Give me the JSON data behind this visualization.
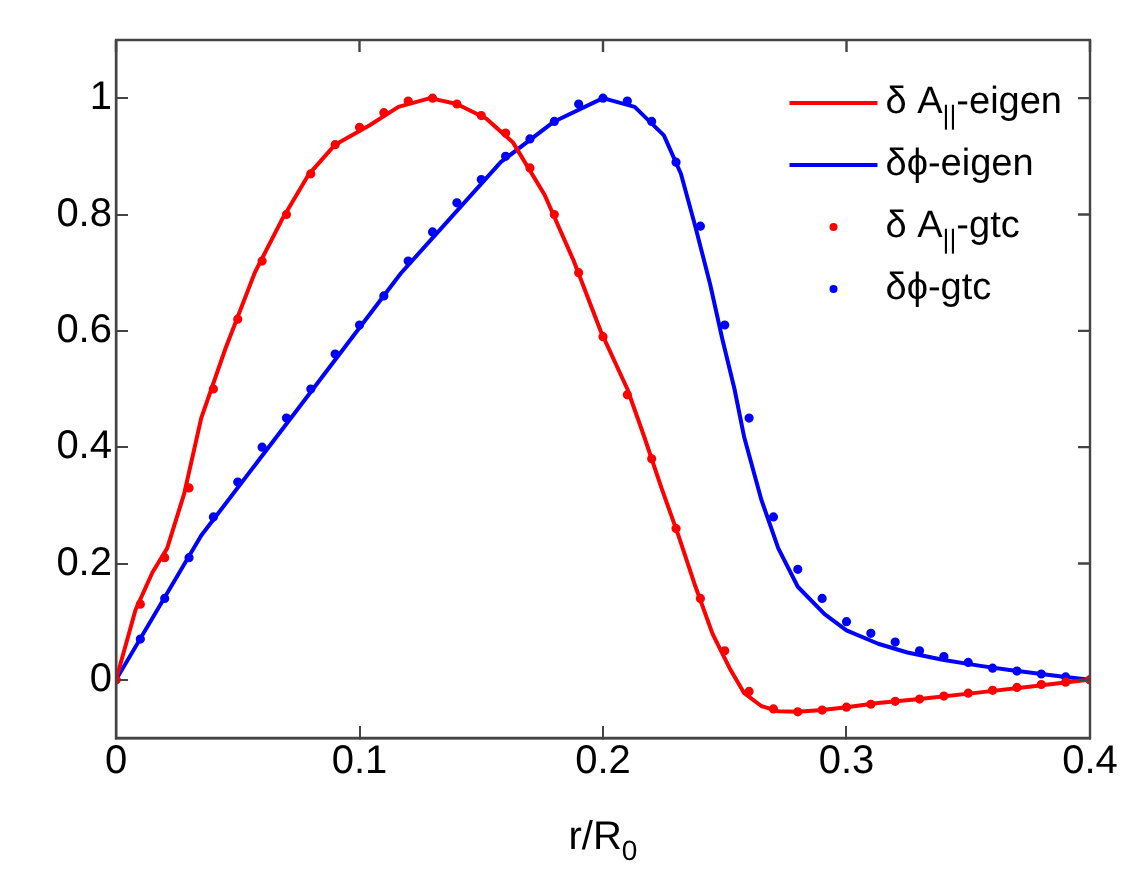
{
  "chart_data": {
    "type": "line",
    "xlabel": "r/R$_{0}$",
    "xlim": [
      0,
      0.4
    ],
    "xticks": [
      0,
      0.1,
      0.2,
      0.3,
      0.4
    ],
    "ylim": [
      -0.1,
      1.1
    ],
    "yticks": [
      0,
      0.2,
      0.4,
      0.6,
      0.8,
      1
    ],
    "grid": false,
    "legend": "top right",
    "line_style": "solid",
    "series": [
      {
        "name": "δ A$_{||}$-eigen",
        "marker": "none",
        "color": "#ff0000",
        "x": [
          0,
          0.004,
          0.008,
          0.015,
          0.021,
          0.028,
          0.035,
          0.045,
          0.057,
          0.068,
          0.079,
          0.09,
          0.104,
          0.116,
          0.129,
          0.14,
          0.152,
          0.163,
          0.176,
          0.188,
          0.199,
          0.21,
          0.217,
          0.224,
          0.231,
          0.238,
          0.245,
          0.252,
          0.258,
          0.265,
          0.272,
          0.28,
          0.29,
          0.3,
          0.313,
          0.33,
          0.354,
          0.375,
          0.395,
          0.4
        ],
        "values": [
          0,
          0.06,
          0.12,
          0.185,
          0.226,
          0.32,
          0.45,
          0.57,
          0.7,
          0.79,
          0.868,
          0.92,
          0.953,
          0.985,
          1,
          0.99,
          0.965,
          0.924,
          0.834,
          0.72,
          0.6,
          0.5,
          0.417,
          0.33,
          0.248,
          0.16,
          0.079,
          0.02,
          -0.023,
          -0.045,
          -0.054,
          -0.055,
          -0.052,
          -0.047,
          -0.04,
          -0.033,
          -0.022,
          -0.012,
          -0.002,
          0
        ]
      },
      {
        "name": "δϕ-eigen",
        "marker": "none",
        "color": "#0000ff",
        "x": [
          0,
          0.035,
          0.076,
          0.117,
          0.158,
          0.18,
          0.2,
          0.213,
          0.225,
          0.232,
          0.238,
          0.244,
          0.249,
          0.254,
          0.258,
          0.265,
          0.272,
          0.28,
          0.291,
          0.3,
          0.313,
          0.325,
          0.34,
          0.355,
          0.367,
          0.38,
          0.39,
          0.4
        ],
        "values": [
          0,
          0.248,
          0.473,
          0.699,
          0.89,
          0.96,
          1,
          0.985,
          0.936,
          0.87,
          0.778,
          0.68,
          0.586,
          0.5,
          0.417,
          0.31,
          0.226,
          0.16,
          0.113,
          0.085,
          0.062,
          0.047,
          0.034,
          0.024,
          0.017,
          0.01,
          0.005,
          0
        ]
      },
      {
        "name": "δ A$_{||}$-gtc",
        "type": "scatter",
        "marker": "circle",
        "color": "#ff0000",
        "x": [
          0,
          0.01,
          0.02,
          0.03,
          0.04,
          0.05,
          0.06,
          0.07,
          0.08,
          0.09,
          0.1,
          0.11,
          0.12,
          0.13,
          0.14,
          0.15,
          0.16,
          0.17,
          0.18,
          0.19,
          0.2,
          0.21,
          0.22,
          0.23,
          0.24,
          0.25,
          0.26,
          0.27,
          0.28,
          0.29,
          0.3,
          0.31,
          0.32,
          0.33,
          0.34,
          0.35,
          0.36,
          0.37,
          0.38,
          0.39,
          0.4
        ],
        "values": [
          0,
          0.13,
          0.21,
          0.33,
          0.5,
          0.62,
          0.72,
          0.8,
          0.87,
          0.92,
          0.95,
          0.975,
          0.995,
          1,
          0.99,
          0.97,
          0.94,
          0.88,
          0.8,
          0.7,
          0.59,
          0.49,
          0.38,
          0.26,
          0.14,
          0.05,
          -0.02,
          -0.05,
          -0.055,
          -0.052,
          -0.047,
          -0.042,
          -0.037,
          -0.033,
          -0.028,
          -0.023,
          -0.018,
          -0.013,
          -0.008,
          -0.004,
          0
        ]
      },
      {
        "name": "δϕ-gtc",
        "type": "scatter",
        "marker": "circle",
        "color": "#0000ff",
        "x": [
          0,
          0.01,
          0.02,
          0.03,
          0.04,
          0.05,
          0.06,
          0.07,
          0.08,
          0.09,
          0.1,
          0.11,
          0.12,
          0.13,
          0.14,
          0.15,
          0.16,
          0.17,
          0.18,
          0.19,
          0.2,
          0.21,
          0.22,
          0.23,
          0.24,
          0.25,
          0.26,
          0.27,
          0.28,
          0.29,
          0.3,
          0.31,
          0.32,
          0.33,
          0.34,
          0.35,
          0.36,
          0.37,
          0.38,
          0.39,
          0.4
        ],
        "values": [
          0,
          0.07,
          0.14,
          0.21,
          0.28,
          0.34,
          0.4,
          0.45,
          0.5,
          0.56,
          0.61,
          0.66,
          0.72,
          0.77,
          0.82,
          0.86,
          0.9,
          0.93,
          0.96,
          0.99,
          1,
          0.995,
          0.96,
          0.89,
          0.78,
          0.61,
          0.45,
          0.28,
          0.19,
          0.14,
          0.1,
          0.08,
          0.065,
          0.05,
          0.04,
          0.03,
          0.02,
          0.015,
          0.01,
          0.005,
          0
        ]
      }
    ]
  }
}
